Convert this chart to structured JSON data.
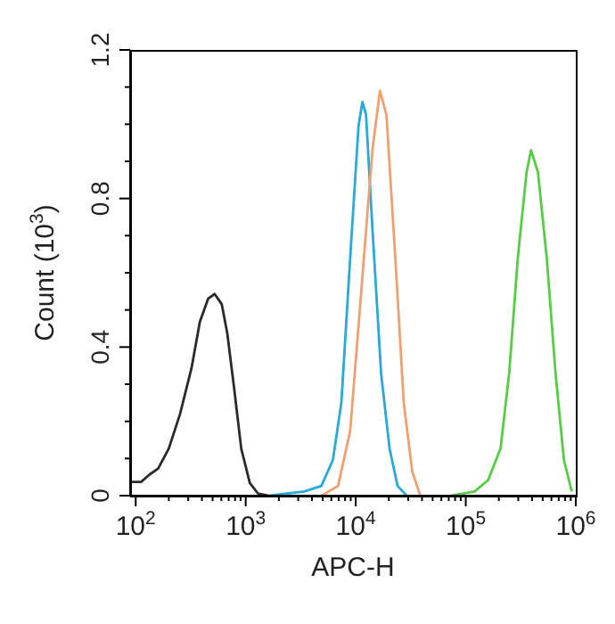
{
  "chart_data": {
    "type": "line",
    "xlabel": "APC-H",
    "ylabel": "Count (10$^{3}$)",
    "log": "x",
    "marker": "none",
    "line_style": "solid",
    "grid": false,
    "legend": false,
    "xlim": [
      89,
      1000000
    ],
    "ylim": [
      0,
      1.2
    ],
    "xticks": [
      {
        "value": 100,
        "label": "10$^{2}$"
      },
      {
        "value": 200,
        "label": null
      },
      {
        "value": 300,
        "label": null
      },
      {
        "value": 400,
        "label": null
      },
      {
        "value": 500,
        "label": null
      },
      {
        "value": 600,
        "label": null
      },
      {
        "value": 700,
        "label": null
      },
      {
        "value": 800,
        "label": null
      },
      {
        "value": 900,
        "label": null
      },
      {
        "value": 1000,
        "label": "10$^{3}$"
      },
      {
        "value": 2000,
        "label": null
      },
      {
        "value": 3000,
        "label": null
      },
      {
        "value": 4000,
        "label": null
      },
      {
        "value": 5000,
        "label": null
      },
      {
        "value": 6000,
        "label": null
      },
      {
        "value": 7000,
        "label": null
      },
      {
        "value": 8000,
        "label": null
      },
      {
        "value": 9000,
        "label": null
      },
      {
        "value": 10000,
        "label": "10$^{4}$"
      },
      {
        "value": 20000,
        "label": null
      },
      {
        "value": 30000,
        "label": null
      },
      {
        "value": 40000,
        "label": null
      },
      {
        "value": 50000,
        "label": null
      },
      {
        "value": 60000,
        "label": null
      },
      {
        "value": 70000,
        "label": null
      },
      {
        "value": 80000,
        "label": null
      },
      {
        "value": 90000,
        "label": null
      },
      {
        "value": 100000,
        "label": "10$^{5}$"
      },
      {
        "value": 200000,
        "label": null
      },
      {
        "value": 300000,
        "label": null
      },
      {
        "value": 400000,
        "label": null
      },
      {
        "value": 500000,
        "label": null
      },
      {
        "value": 600000,
        "label": null
      },
      {
        "value": 700000,
        "label": null
      },
      {
        "value": 800000,
        "label": null
      },
      {
        "value": 900000,
        "label": null
      },
      {
        "value": 1000000,
        "label": "10$^{6}$"
      }
    ],
    "yticks": [
      0,
      {
        "value": 0.1,
        "label": null
      },
      {
        "value": 0.2,
        "label": null
      },
      {
        "value": 0.3,
        "label": null
      },
      0.4,
      {
        "value": 0.5,
        "label": null
      },
      {
        "value": 0.6,
        "label": null
      },
      {
        "value": 0.7,
        "label": null
      },
      0.8,
      {
        "value": 0.9,
        "label": null
      },
      {
        "value": 1.0,
        "label": null
      },
      {
        "value": 1.1,
        "label": null
      },
      1.2
    ],
    "series": [
      {
        "color": "#2a2a2a",
        "x": [
          89,
          112,
          134,
          160,
          200,
          253,
          322,
          383,
          455,
          522,
          606,
          680,
          790,
          910,
          1090,
          1290,
          1620
        ],
        "values": [
          0.037,
          0.037,
          0.057,
          0.073,
          0.127,
          0.22,
          0.344,
          0.468,
          0.53,
          0.543,
          0.515,
          0.437,
          0.282,
          0.127,
          0.034,
          0.006,
          0
        ]
      },
      {
        "color": "#2aa8d8",
        "x": [
          1650,
          3400,
          4870,
          6200,
          7400,
          8900,
          10600,
          11500,
          12400,
          14200,
          17000,
          20300,
          24000,
          29000
        ],
        "values": [
          0,
          0.011,
          0.026,
          0.096,
          0.25,
          0.64,
          0.995,
          1.06,
          1.026,
          0.716,
          0.329,
          0.127,
          0.026,
          0
        ]
      },
      {
        "color": "#f0a070",
        "x": [
          4900,
          6900,
          8900,
          11300,
          14200,
          16600,
          19000,
          22900,
          27300,
          32600,
          38600
        ],
        "values": [
          0,
          0.026,
          0.174,
          0.561,
          0.933,
          1.09,
          1.026,
          0.639,
          0.251,
          0.065,
          0
        ]
      },
      {
        "color": "#55cc44",
        "x": [
          74000,
          120000,
          160000,
          207000,
          248000,
          297000,
          357000,
          392000,
          453000,
          545000,
          655000,
          780000,
          920000
        ],
        "values": [
          0,
          0.011,
          0.042,
          0.127,
          0.329,
          0.639,
          0.871,
          0.93,
          0.871,
          0.639,
          0.329,
          0.096,
          0.011
        ]
      }
    ]
  }
}
